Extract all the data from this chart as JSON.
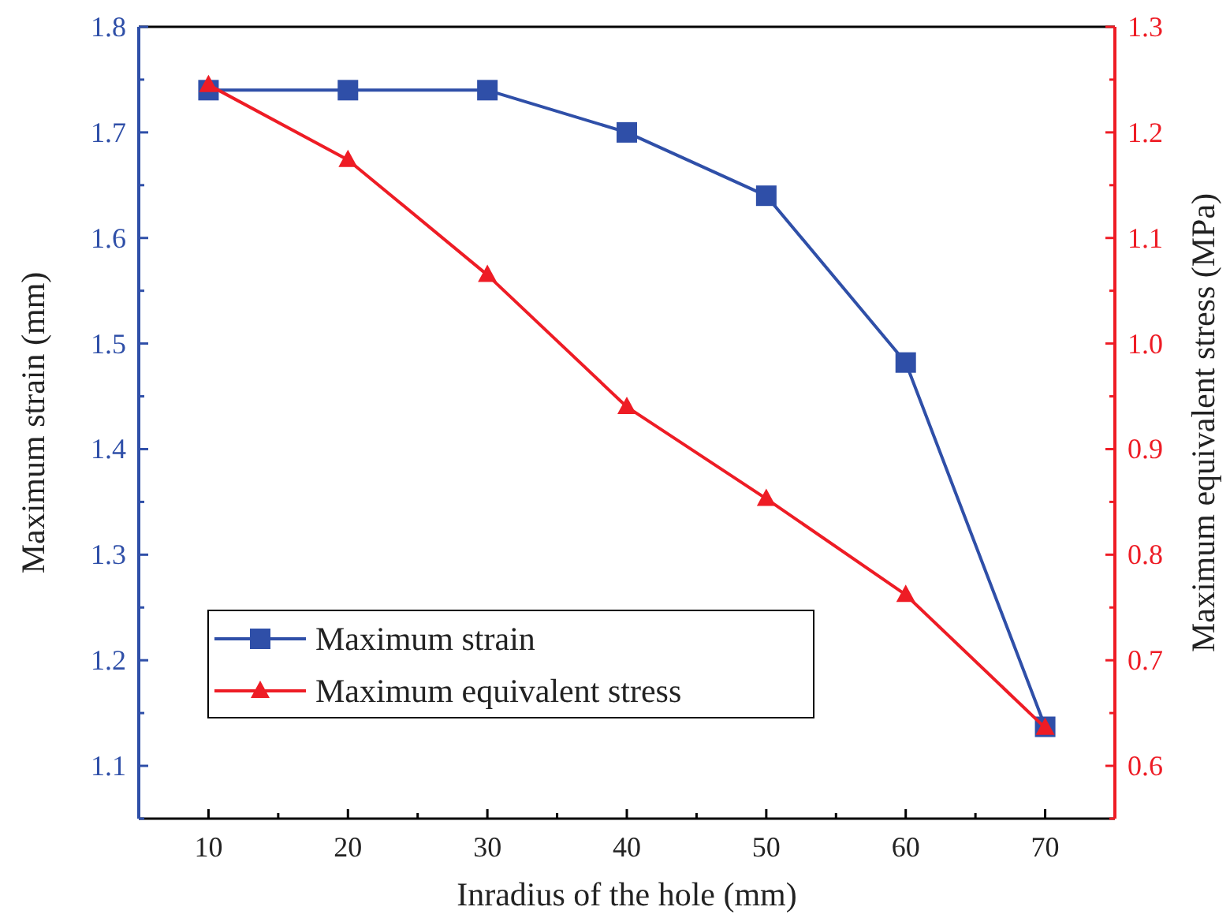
{
  "chart_data": {
    "type": "line",
    "xlabel": "Inradius of the hole (mm)",
    "ylabel": "Maximum strain (mm)",
    "y2label": "Maximum equivalent stress (MPa)",
    "x": [
      10,
      20,
      30,
      40,
      50,
      60,
      70
    ],
    "xlim": [
      5,
      75
    ],
    "xticks": [
      10,
      20,
      30,
      40,
      50,
      60,
      70
    ],
    "ylim": [
      1.05,
      1.8
    ],
    "yticks": [
      1.1,
      1.2,
      1.3,
      1.4,
      1.5,
      1.6,
      1.7,
      1.8
    ],
    "y2lim": [
      0.55,
      1.3
    ],
    "y2ticks": [
      0.6,
      0.7,
      0.8,
      0.9,
      {
        "value": 1,
        "label": "1.0"
      },
      1.1,
      1.2,
      1.3
    ],
    "series": [
      {
        "name": "Maximum strain",
        "color": "#2f4fa8",
        "marker": "square",
        "values": [
          1.74,
          1.74,
          1.74,
          1.7,
          1.64,
          1.482,
          1.137
        ]
      },
      {
        "name": "Maximum equivalent stress",
        "color": "#ee1c25",
        "marker": "triangle",
        "axis": "y2",
        "values": [
          1.245,
          1.174,
          1.065,
          0.94,
          0.853,
          0.762,
          0.636
        ]
      }
    ],
    "legend": "bottom left",
    "grid": false
  }
}
